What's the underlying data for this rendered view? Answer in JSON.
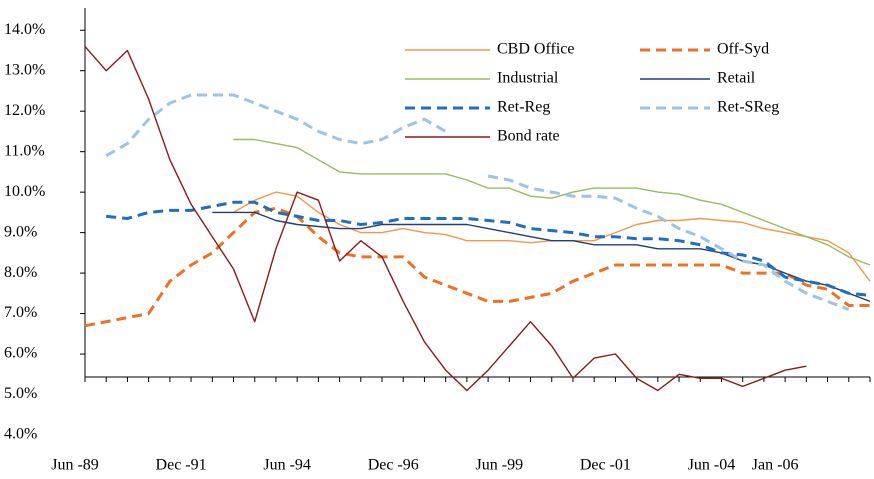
{
  "chart_data": {
    "type": "line",
    "categories": [
      "Jun -89",
      null,
      null,
      null,
      null,
      "Dec -91",
      null,
      null,
      null,
      null,
      "Jun -94",
      null,
      null,
      null,
      null,
      "Dec -96",
      null,
      null,
      null,
      null,
      "Jun -99",
      null,
      null,
      null,
      null,
      "Dec -01",
      null,
      null,
      null,
      null,
      "Jun -04",
      null,
      null,
      "Jan -06",
      null,
      null,
      null,
      null
    ],
    "ylim": [
      4,
      14.5
    ],
    "yticks": [
      {
        "value": 4,
        "label": "4.0%"
      },
      {
        "value": 5,
        "label": "5.0%"
      },
      {
        "value": 6,
        "label": "6.0%"
      },
      {
        "value": 7,
        "label": "7.0%"
      },
      {
        "value": 8,
        "label": "8.0%"
      },
      {
        "value": 9,
        "label": "9.0%"
      },
      {
        "value": 10,
        "label": "10.0%"
      },
      {
        "value": 11,
        "label": "11.0%"
      },
      {
        "value": 12,
        "label": "12.0%"
      },
      {
        "value": 13,
        "label": "13.0%"
      },
      {
        "value": 14,
        "label": "14.0%"
      }
    ],
    "grid": false,
    "legend": "top-right",
    "series": [
      {
        "name": "CBD Office",
        "color": "#f79646",
        "dashed": false,
        "values": [
          null,
          null,
          null,
          null,
          null,
          null,
          null,
          9.5,
          9.8,
          10.0,
          9.9,
          9.5,
          9.2,
          9.0,
          9.0,
          9.1,
          9.0,
          8.95,
          8.8,
          8.8,
          8.8,
          8.75,
          8.8,
          8.8,
          8.8,
          9.0,
          9.2,
          9.3,
          9.3,
          9.35,
          9.3,
          9.25,
          9.1,
          9.0,
          8.9,
          8.8,
          8.5,
          7.8
        ]
      },
      {
        "name": "Off-Syd",
        "color": "#f07020",
        "dashed": true,
        "values": [
          6.7,
          6.8,
          6.9,
          7.0,
          7.8,
          8.2,
          8.5,
          9.0,
          9.5,
          9.6,
          9.4,
          8.9,
          8.5,
          8.4,
          8.4,
          8.4,
          7.9,
          7.7,
          7.5,
          7.3,
          7.3,
          7.4,
          7.5,
          7.8,
          8.0,
          8.2,
          8.2,
          8.2,
          8.2,
          8.2,
          8.2,
          8.0,
          8.0,
          8.0,
          7.7,
          7.6,
          7.2,
          7.2
        ]
      },
      {
        "name": "Industrial",
        "color": "#9bbb59",
        "dashed": false,
        "values": [
          null,
          null,
          null,
          null,
          null,
          null,
          null,
          11.3,
          11.3,
          11.2,
          11.1,
          10.8,
          10.5,
          10.45,
          10.45,
          10.45,
          10.45,
          10.45,
          10.3,
          10.1,
          10.1,
          9.9,
          9.85,
          10.0,
          10.1,
          10.1,
          10.1,
          10.0,
          9.95,
          9.8,
          9.7,
          9.5,
          9.3,
          9.1,
          8.9,
          8.7,
          8.4,
          8.2
        ]
      },
      {
        "name": "Retail",
        "color": "#1f3f7a",
        "dashed": false,
        "values": [
          null,
          null,
          null,
          null,
          null,
          null,
          9.5,
          9.5,
          9.5,
          9.3,
          9.2,
          9.15,
          9.1,
          9.1,
          9.2,
          9.2,
          9.2,
          9.2,
          9.2,
          9.1,
          9.0,
          8.9,
          8.8,
          8.8,
          8.7,
          8.7,
          8.7,
          8.6,
          8.6,
          8.6,
          8.5,
          8.3,
          8.2,
          8.0,
          7.8,
          7.7,
          7.5,
          7.3
        ]
      },
      {
        "name": "Ret-Reg",
        "color": "#1f6fc0",
        "dashed": true,
        "values": [
          null,
          9.4,
          9.35,
          9.5,
          9.55,
          9.55,
          9.65,
          9.75,
          9.75,
          9.5,
          9.4,
          9.3,
          9.3,
          9.2,
          9.25,
          9.35,
          9.35,
          9.35,
          9.35,
          9.3,
          9.25,
          9.1,
          9.05,
          9.0,
          8.9,
          8.9,
          8.85,
          8.85,
          8.8,
          8.7,
          8.5,
          8.45,
          8.3,
          7.9,
          7.8,
          7.7,
          7.5,
          7.45
        ]
      },
      {
        "name": "Ret-SReg",
        "color": "#9dc3e6",
        "dashed": true,
        "values": [
          null,
          10.9,
          11.2,
          11.8,
          12.2,
          12.4,
          12.4,
          12.4,
          12.2,
          12.0,
          11.8,
          11.5,
          11.3,
          11.2,
          11.3,
          11.6,
          11.8,
          11.5,
          null,
          10.4,
          10.3,
          10.1,
          10.0,
          9.9,
          9.9,
          9.85,
          9.6,
          9.4,
          9.1,
          8.9,
          8.6,
          8.3,
          8.2,
          7.8,
          7.5,
          7.3,
          7.1,
          null
        ]
      },
      {
        "name": "Bond rate",
        "color": "#8b1a1a",
        "dashed": false,
        "values": [
          13.6,
          13.0,
          13.5,
          12.3,
          10.8,
          9.7,
          8.9,
          8.1,
          6.8,
          8.6,
          10.0,
          9.8,
          8.3,
          8.8,
          8.4,
          7.3,
          6.3,
          5.6,
          5.1,
          5.6,
          6.2,
          6.8,
          6.2,
          5.4,
          5.9,
          6.0,
          5.4,
          5.1,
          5.5,
          5.4,
          5.4,
          5.2,
          5.4,
          5.6,
          5.7,
          null,
          null,
          null
        ]
      }
    ]
  }
}
